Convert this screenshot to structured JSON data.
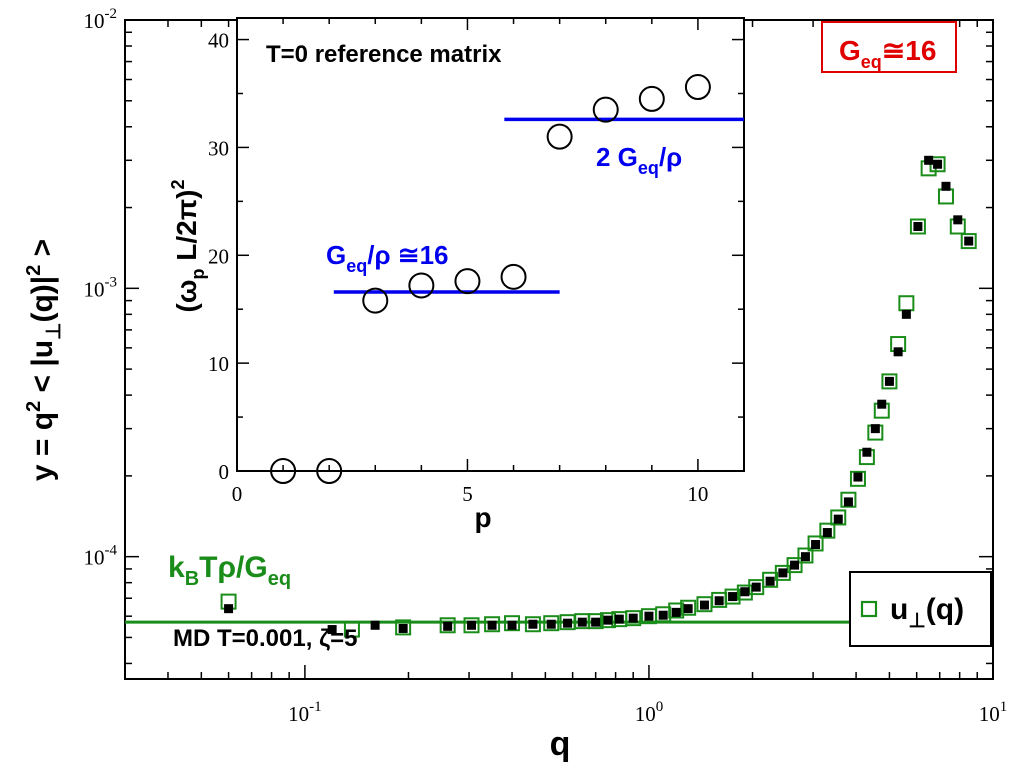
{
  "chart_data": [
    {
      "id": "main",
      "type": "scatter",
      "xscale": "log",
      "yscale": "log",
      "xlim": [
        0.03,
        10
      ],
      "ylim": [
        3.5e-05,
        0.01
      ],
      "xlabel": "q",
      "ylabel": "y = q² < |u⊥(q)|² >",
      "xticks": [
        {
          "value": 0.1,
          "base": "10",
          "exp": "-1"
        },
        {
          "value": 1,
          "base": "10",
          "exp": "0"
        },
        {
          "value": 10,
          "base": "10",
          "exp": "1"
        }
      ],
      "yticks": [
        {
          "value": 0.0001,
          "base": "10",
          "exp": "-4"
        },
        {
          "value": 0.001,
          "base": "10",
          "exp": "-3"
        },
        {
          "value": 0.01,
          "base": "10",
          "exp": "-2"
        }
      ],
      "series": [
        {
          "name": "u⊥(q)",
          "marker": "open-square",
          "color": "#1a8c1a",
          "points": [
            [
              0.06,
              6.8e-05
            ],
            [
              0.137,
              5.35e-05
            ],
            [
              0.193,
              5.45e-05
            ],
            [
              0.26,
              5.55e-05
            ],
            [
              0.305,
              5.55e-05
            ],
            [
              0.35,
              5.6e-05
            ],
            [
              0.4,
              5.65e-05
            ],
            [
              0.46,
              5.6e-05
            ],
            [
              0.52,
              5.65e-05
            ],
            [
              0.58,
              5.7e-05
            ],
            [
              0.64,
              5.75e-05
            ],
            [
              0.7,
              5.75e-05
            ],
            [
              0.76,
              5.8e-05
            ],
            [
              0.82,
              5.85e-05
            ],
            [
              0.9,
              5.9e-05
            ],
            [
              1.0,
              6e-05
            ],
            [
              1.1,
              6.1e-05
            ],
            [
              1.2,
              6.3e-05
            ],
            [
              1.3,
              6.45e-05
            ],
            [
              1.45,
              6.65e-05
            ],
            [
              1.6,
              6.9e-05
            ],
            [
              1.75,
              7.1e-05
            ],
            [
              1.9,
              7.35e-05
            ],
            [
              2.05,
              7.7e-05
            ],
            [
              2.25,
              8.2e-05
            ],
            [
              2.45,
              8.7e-05
            ],
            [
              2.65,
              9.3e-05
            ],
            [
              2.85,
              0.000101
            ],
            [
              3.05,
              0.000112
            ],
            [
              3.3,
              0.000125
            ],
            [
              3.55,
              0.00014
            ],
            [
              3.8,
              0.000163
            ],
            [
              4.05,
              0.000195
            ],
            [
              4.3,
              0.000235
            ],
            [
              4.55,
              0.00029
            ],
            [
              4.75,
              0.00035
            ],
            [
              5.0,
              0.00045
            ],
            [
              5.3,
              0.00062
            ],
            [
              5.6,
              0.00088
            ],
            [
              6.05,
              0.0017
            ],
            [
              6.5,
              0.0028
            ],
            [
              6.9,
              0.0029
            ],
            [
              7.3,
              0.0022
            ],
            [
              7.9,
              0.0017
            ],
            [
              8.5,
              0.0015
            ]
          ]
        },
        {
          "name": "MD T=0.001, ζ=5",
          "marker": "filled-square",
          "color": "#000000",
          "points": [
            [
              0.06,
              6.4e-05
            ],
            [
              0.12,
              5.35e-05
            ],
            [
              0.16,
              5.55e-05
            ],
            [
              0.193,
              5.4e-05
            ],
            [
              0.26,
              5.5e-05
            ],
            [
              0.305,
              5.55e-05
            ],
            [
              0.35,
              5.55e-05
            ],
            [
              0.4,
              5.55e-05
            ],
            [
              0.46,
              5.6e-05
            ],
            [
              0.52,
              5.6e-05
            ],
            [
              0.58,
              5.65e-05
            ],
            [
              0.64,
              5.7e-05
            ],
            [
              0.7,
              5.7e-05
            ],
            [
              0.76,
              5.8e-05
            ],
            [
              0.82,
              5.85e-05
            ],
            [
              0.9,
              5.9e-05
            ],
            [
              1.0,
              6e-05
            ],
            [
              1.1,
              6.05e-05
            ],
            [
              1.2,
              6.2e-05
            ],
            [
              1.3,
              6.4e-05
            ],
            [
              1.45,
              6.6e-05
            ],
            [
              1.6,
              6.85e-05
            ],
            [
              1.75,
              7.1e-05
            ],
            [
              1.9,
              7.4e-05
            ],
            [
              2.05,
              7.7e-05
            ],
            [
              2.25,
              8.1e-05
            ],
            [
              2.45,
              8.7e-05
            ],
            [
              2.65,
              9.3e-05
            ],
            [
              2.85,
              0.0001
            ],
            [
              3.05,
              0.000111
            ],
            [
              3.3,
              0.000123
            ],
            [
              3.55,
              0.000138
            ],
            [
              3.8,
              0.00016
            ],
            [
              4.05,
              0.000198
            ],
            [
              4.3,
              0.000245
            ],
            [
              4.55,
              0.0003
            ],
            [
              4.75,
              0.00037
            ],
            [
              5.0,
              0.00045
            ],
            [
              5.3,
              0.00058
            ],
            [
              5.6,
              0.0008
            ],
            [
              6.05,
              0.0017
            ],
            [
              6.5,
              0.003
            ],
            [
              6.9,
              0.0029
            ],
            [
              7.3,
              0.0024
            ],
            [
              7.9,
              0.0018
            ],
            [
              8.5,
              0.0015
            ]
          ]
        }
      ],
      "reference_line": {
        "y": 5.7e-05,
        "xrange": [
          0.03,
          4.2
        ],
        "color": "#1a8c1a"
      },
      "annotations": {
        "kbt": "kBTρ/Geq",
        "md": "MD T=0.001, ζ=5",
        "geq_box": "Geq≅16",
        "legend": "u⊥(q)"
      }
    },
    {
      "id": "inset",
      "type": "scatter",
      "xlim": [
        0,
        11
      ],
      "ylim": [
        0,
        42
      ],
      "xlabel": "p",
      "ylabel": "(ωp L/2π)²",
      "title": "T=0 reference matrix",
      "xticks": [
        "0",
        "5",
        "10"
      ],
      "xtick_values": [
        0,
        5,
        10
      ],
      "yticks": [
        "0",
        "10",
        "20",
        "30",
        "40"
      ],
      "ytick_values": [
        0,
        10,
        20,
        30,
        40
      ],
      "points": [
        [
          1,
          0
        ],
        [
          2,
          0
        ],
        [
          3,
          15.8
        ],
        [
          4,
          17.2
        ],
        [
          5,
          17.6
        ],
        [
          6,
          18.0
        ],
        [
          7,
          31.0
        ],
        [
          8,
          33.5
        ],
        [
          9,
          34.5
        ],
        [
          10,
          35.6
        ]
      ],
      "lines": [
        {
          "label": "Geq/ρ ≅16",
          "y": 16.6,
          "x0": 2.1,
          "x1": 7.0,
          "color": "#0000ee"
        },
        {
          "label": "2 Geq/ρ",
          "y": 32.6,
          "x0": 5.8,
          "x1": 11.0,
          "color": "#0000ee"
        }
      ]
    }
  ]
}
